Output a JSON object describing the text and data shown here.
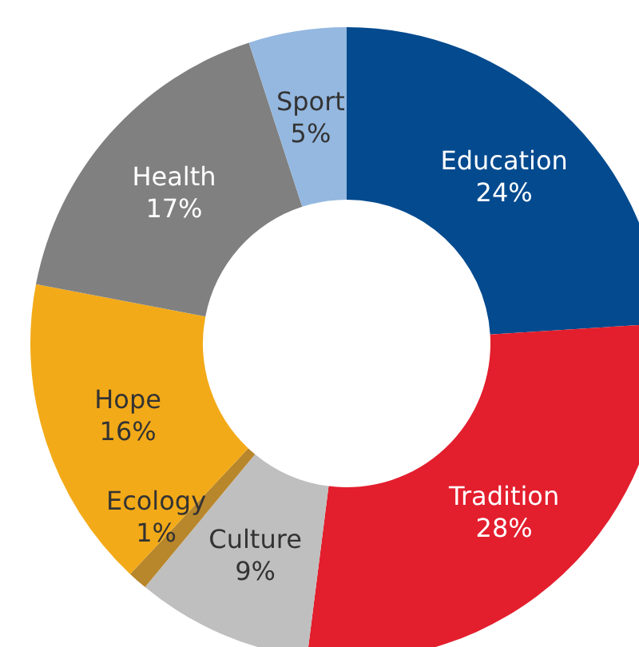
{
  "chart_data": {
    "type": "donut",
    "categories": [
      "Education",
      "Tradition",
      "Culture",
      "Ecology",
      "Hope",
      "Health",
      "Sport"
    ],
    "values": [
      24,
      28,
      9,
      1,
      16,
      17,
      5
    ],
    "value_labels": [
      "24%",
      "28%",
      "9%",
      "1%",
      "16%",
      "17%",
      "5%"
    ],
    "colors": [
      "#034a8e",
      "#e31e2d",
      "#bfbfbf",
      "#b8862b",
      "#f3aa18",
      "#808080",
      "#94b8e0"
    ],
    "legend": false
  }
}
